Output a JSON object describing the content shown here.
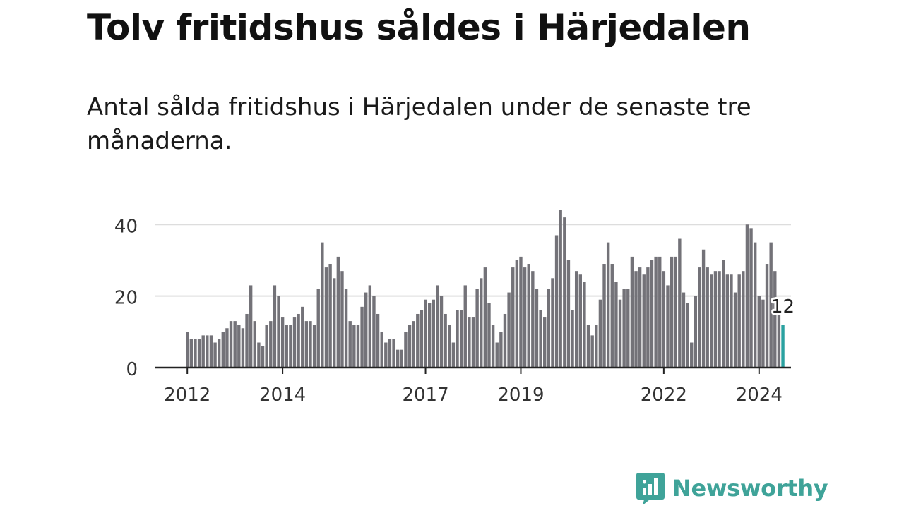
{
  "title": "Tolv fritidshus såldes i Härjedalen",
  "subtitle": "Antal sålda fritidshus i Härjedalen under de senaste tre månaderna.",
  "logo_text": "Newsworthy",
  "colors": {
    "bar": "#737278",
    "highlight": "#2aa1a0",
    "grid": "#dddddd",
    "axis": "#222222",
    "logo": "#3fa399"
  },
  "chart_data": {
    "type": "bar",
    "start_year": 2012,
    "xlim_years": [
      2011.33,
      2024.67
    ],
    "ylim": [
      0,
      44
    ],
    "y_ticks": [
      0,
      20,
      40
    ],
    "x_ticks": [
      "2012",
      "2014",
      "2017",
      "2019",
      "2022",
      "2024"
    ],
    "grid": true,
    "highlight_last": true,
    "last_label": "12",
    "values": [
      10,
      8,
      8,
      8,
      9,
      9,
      9,
      7,
      8,
      10,
      11,
      13,
      13,
      12,
      11,
      15,
      23,
      13,
      7,
      6,
      12,
      13,
      23,
      20,
      14,
      12,
      12,
      14,
      15,
      17,
      13,
      13,
      12,
      22,
      35,
      28,
      29,
      25,
      31,
      27,
      22,
      13,
      12,
      12,
      17,
      21,
      23,
      20,
      15,
      10,
      7,
      8,
      8,
      5,
      5,
      10,
      12,
      13,
      15,
      16,
      19,
      18,
      19,
      23,
      20,
      15,
      12,
      7,
      16,
      16,
      23,
      14,
      14,
      22,
      25,
      28,
      18,
      12,
      7,
      10,
      15,
      21,
      28,
      30,
      31,
      28,
      29,
      27,
      22,
      16,
      14,
      22,
      25,
      37,
      44,
      42,
      30,
      16,
      27,
      26,
      24,
      12,
      9,
      12,
      19,
      29,
      35,
      29,
      24,
      19,
      22,
      22,
      31,
      27,
      28,
      26,
      28,
      30,
      31,
      31,
      27,
      23,
      31,
      31,
      36,
      21,
      18,
      7,
      20,
      28,
      33,
      28,
      26,
      27,
      27,
      30,
      26,
      26,
      21,
      26,
      27,
      40,
      39,
      35,
      20,
      19,
      29,
      35,
      27,
      15,
      12
    ]
  }
}
